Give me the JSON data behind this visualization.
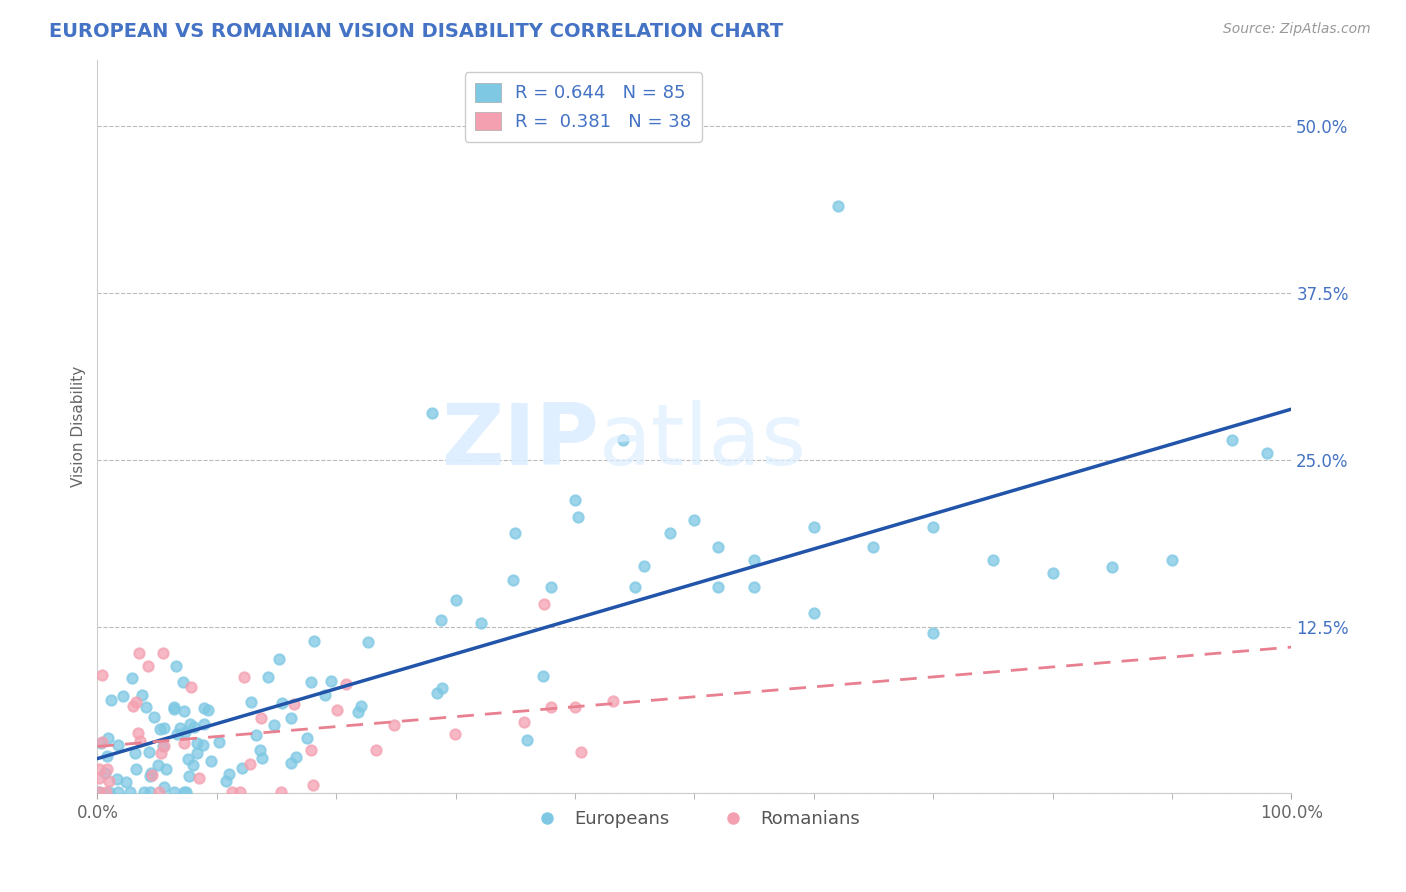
{
  "title": "EUROPEAN VS ROMANIAN VISION DISABILITY CORRELATION CHART",
  "source": "Source: ZipAtlas.com",
  "ylabel": "Vision Disability",
  "legend_europeans": "Europeans",
  "legend_romanians": "Romanians",
  "r_europeans": 0.644,
  "n_europeans": 85,
  "r_romanians": 0.381,
  "n_romanians": 38,
  "color_europeans": "#7EC8E3",
  "color_romanians": "#F4A0B0",
  "color_europeans_line": "#2255AA",
  "color_romanians_line": "#E88090",
  "xlim": [
    0.0,
    1.0
  ],
  "ylim": [
    0.0,
    0.55
  ],
  "background_color": "#FFFFFF",
  "grid_color": "#BBBBBB",
  "title_color": "#4472C4",
  "watermark_zip": "ZIP",
  "watermark_atlas": "atlas"
}
